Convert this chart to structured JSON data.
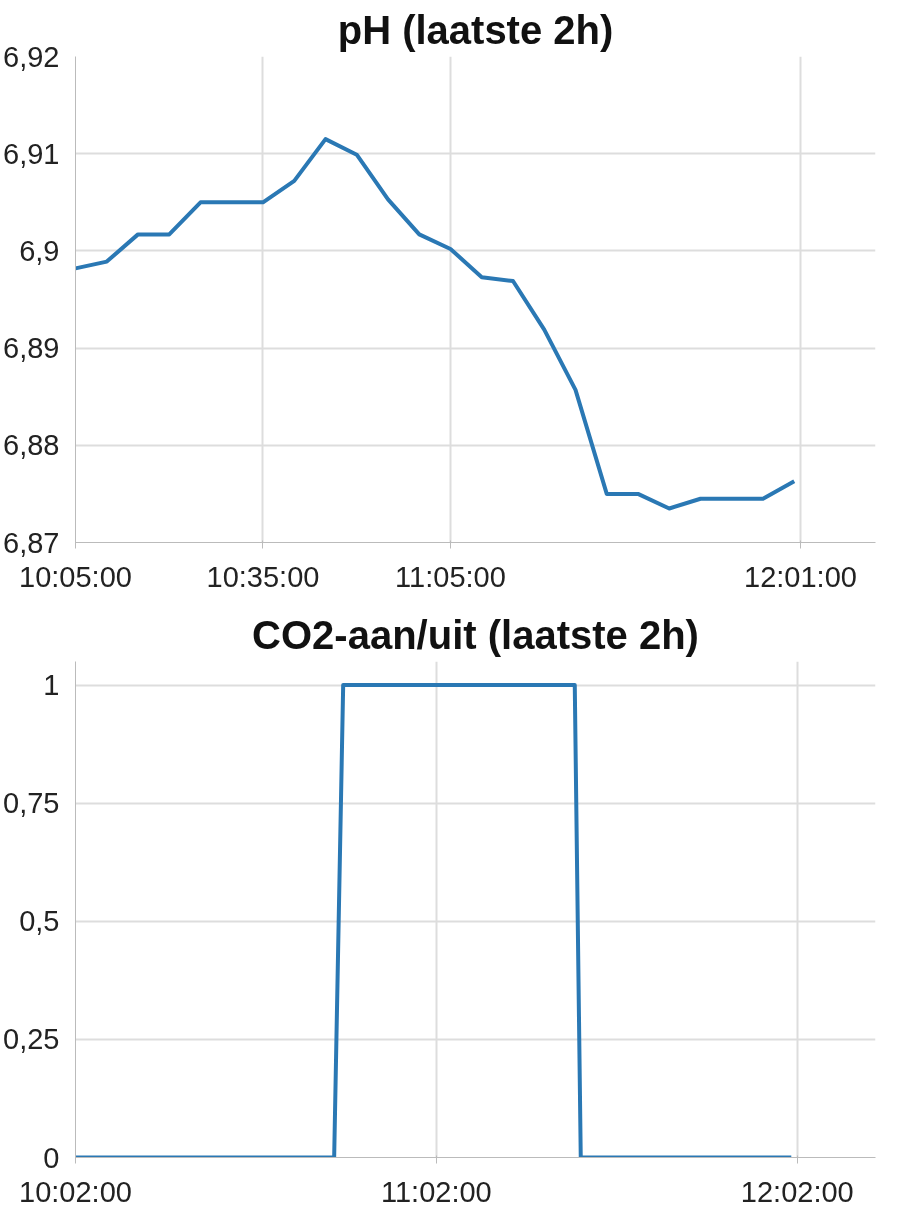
{
  "chart_data": [
    {
      "type": "line",
      "title": "pH (laatste 2h)",
      "x": [
        10.0833,
        10.1667,
        10.25,
        10.3333,
        10.4167,
        10.5,
        10.5833,
        10.6667,
        10.75,
        10.8333,
        10.9167,
        11.0,
        11.0833,
        11.1667,
        11.25,
        11.3333,
        11.4167,
        11.5,
        11.5833,
        11.6667,
        11.75,
        11.8333,
        11.9167,
        12.0
      ],
      "series": [
        {
          "color": "#2a78b4",
          "values": [
            6.8982,
            6.8989,
            6.9017,
            6.9017,
            6.905,
            6.905,
            6.905,
            6.9072,
            6.9115,
            6.9099,
            6.9053,
            6.9017,
            6.9002,
            6.8973,
            6.8969,
            6.8919,
            6.8857,
            6.875,
            6.875,
            6.8735,
            6.8745,
            6.8745,
            6.8745,
            6.8763
          ]
        }
      ],
      "xlim": [
        10.0833,
        12.2167
      ],
      "xticks": [
        {
          "value": 10.0833,
          "label": "10:05:00"
        },
        {
          "value": 10.5833,
          "label": "10:35:00"
        },
        {
          "value": 11.0833,
          "label": "11:05:00"
        },
        {
          "value": 12.0167,
          "label": "12:01:00"
        }
      ],
      "ylim": [
        6.87,
        6.92
      ],
      "yticks": [
        {
          "value": 6.87,
          "label": "6,87"
        },
        {
          "value": 6.88,
          "label": "6,88"
        },
        {
          "value": 6.89,
          "label": "6,89"
        },
        {
          "value": 6.9,
          "label": "6,9"
        },
        {
          "value": 6.91,
          "label": "6,91"
        },
        {
          "value": 6.92,
          "label": "6,92"
        }
      ],
      "grid": true,
      "marker": "none",
      "line_style": "solid"
    },
    {
      "type": "line",
      "title": "CO2-aan/uit (laatste 2h)",
      "x": [
        10.0333,
        10.75,
        10.775,
        11.4167,
        11.4333,
        12.0167
      ],
      "series": [
        {
          "color": "#2a78b4",
          "values": [
            0,
            0,
            1,
            1,
            0,
            0
          ]
        }
      ],
      "xlim": [
        10.0333,
        12.25
      ],
      "xticks": [
        {
          "value": 10.0333,
          "label": "10:02:00"
        },
        {
          "value": 11.0333,
          "label": "11:02:00"
        },
        {
          "value": 12.0333,
          "label": "12:02:00"
        }
      ],
      "ylim": [
        0,
        1.05
      ],
      "yticks": [
        0,
        {
          "value": 0.25,
          "label": "0,25"
        },
        {
          "value": 0.5,
          "label": "0,5"
        },
        {
          "value": 0.75,
          "label": "0,75"
        },
        1
      ],
      "grid": true,
      "marker": "none",
      "line_style": "solid"
    }
  ]
}
